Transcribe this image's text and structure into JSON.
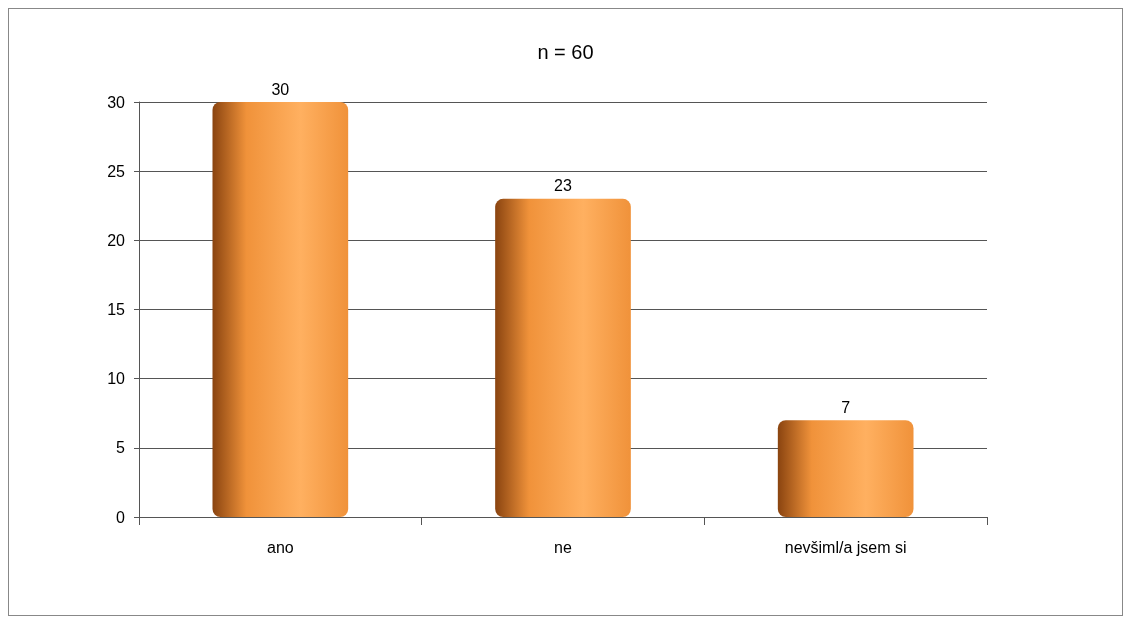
{
  "chart_data": {
    "type": "bar",
    "title": "n = 60",
    "categories": [
      "ano",
      "ne",
      "nevšiml/a jsem si"
    ],
    "values": [
      30,
      23,
      7
    ],
    "color": "#f0923a",
    "ylim": [
      0,
      30
    ],
    "yticks": [
      0,
      5,
      10,
      15,
      20,
      25,
      30
    ],
    "grid": "y",
    "data_labels": true
  }
}
